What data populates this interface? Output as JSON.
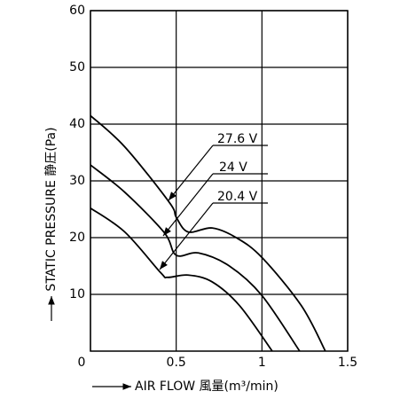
{
  "chart_data": {
    "type": "line",
    "x_label": "AIR FLOW 風量(m³/min)",
    "y_label": "STATIC PRESSURE 静圧(Pa)",
    "xlim": [
      0,
      1.5
    ],
    "xticks": [
      0,
      0.5,
      {
        "value": 1,
        "label": "1"
      },
      1.5
    ],
    "ylim": [
      0,
      60
    ],
    "yticks": [
      10,
      20,
      30,
      40,
      50,
      60
    ],
    "grid": true,
    "series": [
      {
        "name": "27.6 V",
        "color": "#000000",
        "x": [
          0,
          0.2,
          0.46,
          0.5,
          0.57,
          0.71,
          0.85,
          1.0,
          1.23,
          1.37
        ],
        "values": [
          41.5,
          36,
          26.2,
          23.6,
          21,
          21.7,
          20,
          16.5,
          8,
          0
        ]
      },
      {
        "name": "24 V",
        "color": "#000000",
        "x": [
          0,
          0.2,
          0.43,
          0.5,
          0.63,
          0.81,
          1.0,
          1.22
        ],
        "values": [
          32.8,
          28,
          20.9,
          16.9,
          17.3,
          15,
          9.8,
          0
        ]
      },
      {
        "name": "20.4 V",
        "color": "#000000",
        "x": [
          0,
          0.2,
          0.41,
          0.45,
          0.57,
          0.71,
          0.87,
          1.06
        ],
        "values": [
          25.2,
          21,
          13.8,
          13,
          13.4,
          12.2,
          8,
          0
        ]
      }
    ]
  }
}
